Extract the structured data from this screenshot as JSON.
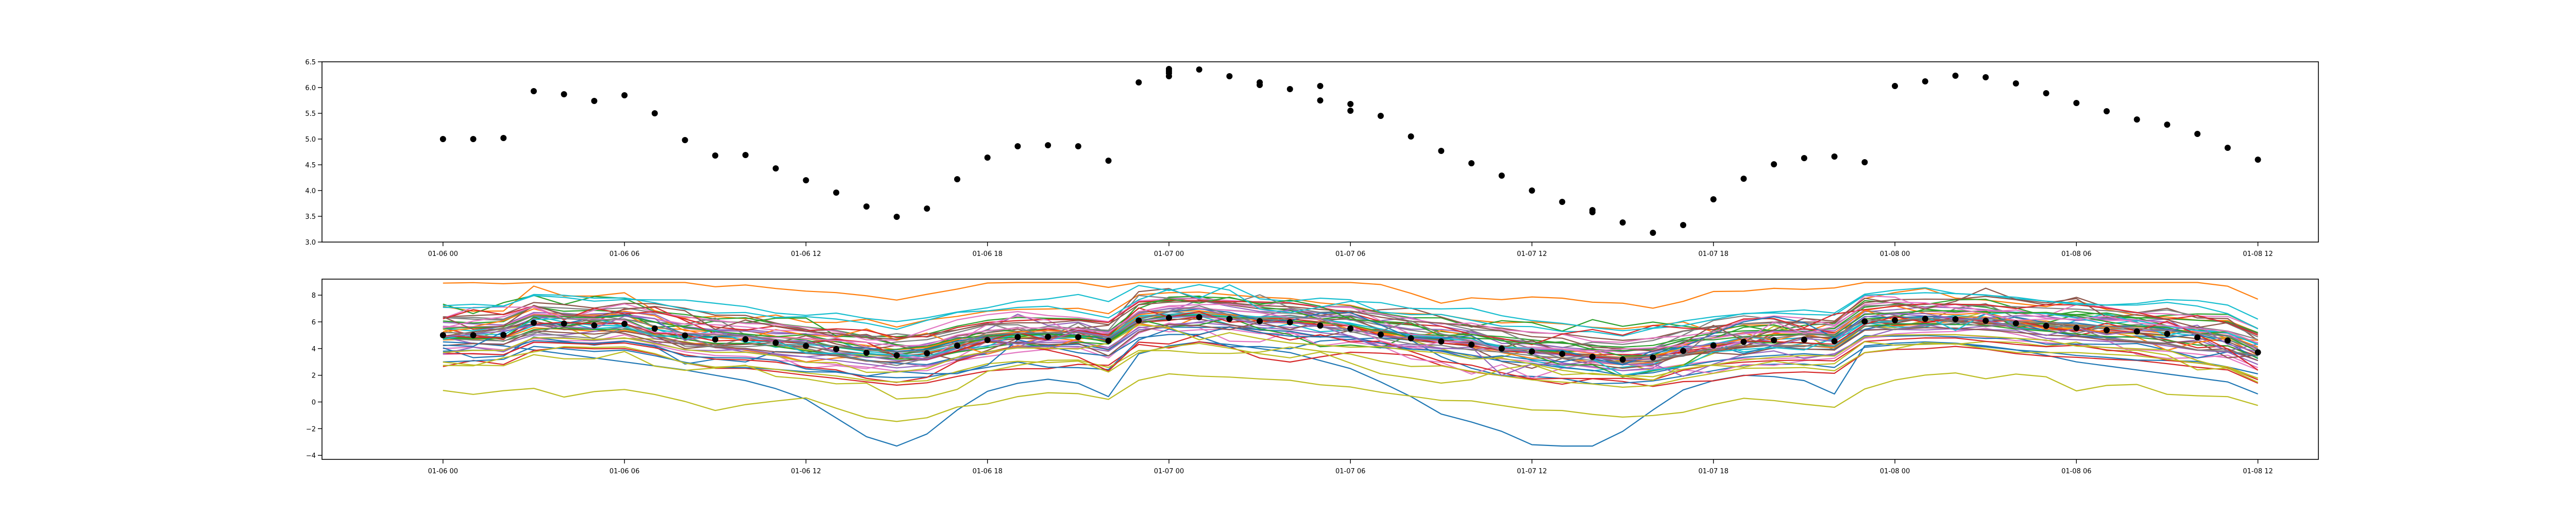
{
  "figure": {
    "time_ticks": [
      "01-06 00",
      "01-06 06",
      "01-06 12",
      "01-06 18",
      "01-07 00",
      "01-07 06",
      "01-07 12",
      "01-07 18",
      "01-08 00",
      "01-08 06",
      "01-08 12"
    ],
    "colors": [
      "#1f77b4",
      "#ff7f0e",
      "#2ca02c",
      "#d62728",
      "#9467bd",
      "#8c564b",
      "#e377c2",
      "#7f7f7f",
      "#bcbd22",
      "#17becf"
    ],
    "point_color": "#000000"
  },
  "chart_data": [
    {
      "type": "scatter",
      "x_unit": "hours since 01-06 00:00",
      "xlim": [
        -4,
        62
      ],
      "ylim": [
        3.0,
        6.5
      ],
      "yticks": [
        "3.0",
        "3.5",
        "4.0",
        "4.5",
        "5.0",
        "5.5",
        "6.0",
        "6.5"
      ],
      "ytick_values": [
        3.0,
        3.5,
        4.0,
        4.5,
        5.0,
        5.5,
        6.0,
        6.5
      ],
      "x": [
        0,
        1,
        2,
        3,
        4,
        5,
        6,
        7,
        8,
        9,
        10,
        11,
        12,
        13,
        14,
        15,
        16,
        17,
        18,
        19,
        20,
        21,
        22,
        23,
        24,
        24,
        24,
        24,
        25,
        26,
        27,
        27,
        28,
        29,
        29,
        30,
        30,
        31,
        32,
        33,
        34,
        35,
        36,
        37,
        38,
        38,
        39,
        40,
        41,
        42,
        43,
        44,
        45,
        46,
        47,
        48,
        49,
        50,
        51,
        52,
        53,
        54,
        55,
        56,
        57,
        58,
        59,
        60
      ],
      "y": [
        5.0,
        5.0,
        5.02,
        5.93,
        5.87,
        5.74,
        5.85,
        5.5,
        4.98,
        4.68,
        4.69,
        4.43,
        4.2,
        3.96,
        3.69,
        3.49,
        3.65,
        4.22,
        4.64,
        4.86,
        4.88,
        4.86,
        4.58,
        6.1,
        6.22,
        6.28,
        6.32,
        6.36,
        6.35,
        6.22,
        6.1,
        6.05,
        5.97,
        6.03,
        5.75,
        5.68,
        5.55,
        5.45,
        5.05,
        4.77,
        4.53,
        4.29,
        4.0,
        3.78,
        3.58,
        3.62,
        3.38,
        3.18,
        3.33,
        3.83,
        4.23,
        4.51,
        4.63,
        4.66,
        4.55,
        6.03,
        6.12,
        6.23,
        6.2,
        6.08,
        5.89,
        5.7,
        5.54,
        5.38,
        5.28,
        5.1,
        4.83,
        4.6
      ]
    },
    {
      "type": "line",
      "x_unit": "hours since 01-06 00:00",
      "xlim": [
        -4,
        62
      ],
      "ylim": [
        -4.3,
        9.2
      ],
      "yticks": [
        "−4",
        "−2",
        "0",
        "2",
        "4",
        "6",
        "8"
      ],
      "ytick_values": [
        -4,
        -2,
        0,
        2,
        4,
        6,
        8
      ],
      "ensemble_size": 50,
      "x": [
        0,
        1,
        2,
        3,
        4,
        5,
        6,
        7,
        8,
        9,
        10,
        11,
        12,
        13,
        14,
        15,
        16,
        17,
        18,
        19,
        20,
        21,
        22,
        23,
        24,
        25,
        26,
        27,
        28,
        29,
        30,
        31,
        32,
        33,
        34,
        35,
        36,
        37,
        38,
        39,
        40,
        41,
        42,
        43,
        44,
        45,
        46,
        47,
        48,
        49,
        50,
        51,
        52,
        53,
        54,
        55,
        56,
        57,
        58,
        59,
        60
      ],
      "mean": [
        5.0,
        5.0,
        5.02,
        5.93,
        5.87,
        5.74,
        5.85,
        5.5,
        4.98,
        4.68,
        4.69,
        4.43,
        4.2,
        3.96,
        3.69,
        3.49,
        3.65,
        4.22,
        4.64,
        4.86,
        4.88,
        4.86,
        4.58,
        6.1,
        6.3,
        6.35,
        6.22,
        6.05,
        5.97,
        5.72,
        5.5,
        5.05,
        4.77,
        4.53,
        4.29,
        4.0,
        3.78,
        3.6,
        3.38,
        3.18,
        3.33,
        3.83,
        4.23,
        4.51,
        4.63,
        4.66,
        4.55,
        6.03,
        6.12,
        6.23,
        6.2,
        6.08,
        5.89,
        5.7,
        5.54,
        5.38,
        5.28,
        5.1,
        4.83,
        4.6,
        3.72
      ],
      "lowest_member": [
        4.5,
        4.4,
        4.2,
        3.9,
        3.6,
        3.3,
        3.0,
        2.7,
        2.4,
        2.0,
        1.6,
        1.0,
        0.2,
        -1.2,
        -2.6,
        -3.3,
        -2.4,
        -0.6,
        0.8,
        1.4,
        1.7,
        1.4,
        0.4,
        3.6,
        4.2,
        4.5,
        4.3,
        4.0,
        3.7,
        3.1,
        2.5,
        1.5,
        0.4,
        -0.9,
        -1.5,
        -2.2,
        -3.2,
        -3.3,
        -3.3,
        -2.2,
        -0.6,
        0.9,
        1.6,
        2.0,
        1.9,
        1.6,
        0.6,
        4.2,
        4.4,
        4.5,
        4.4,
        4.2,
        3.9,
        3.5,
        3.0,
        2.7,
        2.4,
        2.1,
        1.8,
        1.5,
        0.6
      ]
    }
  ]
}
